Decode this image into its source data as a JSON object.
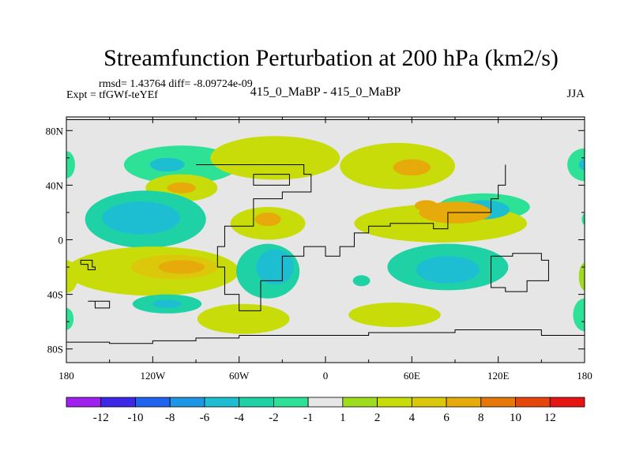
{
  "chart_data": {
    "type": "heatmap",
    "title": "Streamfunction Perturbation at 200 hPa (km2/s)",
    "stats_line": "rmsd= 1.43764  diff= -8.09724e-09",
    "experiment_label": "Expt = tfGWf-teYEf",
    "center_label": "415_0_MaBP - 415_0_MaBP",
    "season_label": "JJA",
    "x_axis": {
      "range": [
        -180,
        180
      ],
      "ticks": [
        {
          "value": -180,
          "label": "180"
        },
        {
          "value": -120,
          "label": "120W"
        },
        {
          "value": -60,
          "label": "60W"
        },
        {
          "value": 0,
          "label": "0"
        },
        {
          "value": 60,
          "label": "60E"
        },
        {
          "value": 120,
          "label": "120E"
        },
        {
          "value": 180,
          "label": "180"
        }
      ]
    },
    "y_axis": {
      "range": [
        -90,
        90
      ],
      "ticks": [
        {
          "value": 80,
          "label": "80N"
        },
        {
          "value": 40,
          "label": "40N"
        },
        {
          "value": 0,
          "label": "0"
        },
        {
          "value": -40,
          "label": "40S"
        },
        {
          "value": -80,
          "label": "80S"
        }
      ]
    },
    "colorbar": {
      "colors": [
        "#a020f0",
        "#3c28e6",
        "#1e64f0",
        "#1e96e6",
        "#1ebed2",
        "#1ed2a5",
        "#2de196",
        "#e6e6e6",
        "#a0dc1e",
        "#c8dc0a",
        "#dcc80a",
        "#e6aa0a",
        "#e6780a",
        "#e6460a",
        "#e61414"
      ],
      "labels": [
        "-12",
        "-10",
        "-8",
        "-6",
        "-4",
        "-2",
        "-1",
        "1",
        "2",
        "4",
        "6",
        "8",
        "10",
        "12"
      ]
    },
    "features": [
      {
        "lon": -100,
        "lat": 55,
        "rx": 40,
        "ry": 14,
        "level": 1,
        "sign": -1
      },
      {
        "lon": -110,
        "lat": 55,
        "rx": 12,
        "ry": 5,
        "level": 3,
        "sign": -1
      },
      {
        "lon": -180,
        "lat": 55,
        "rx": 6,
        "ry": 10,
        "level": 1,
        "sign": -1
      },
      {
        "lon": 180,
        "lat": 55,
        "rx": 12,
        "ry": 12,
        "level": 1,
        "sign": -1
      },
      {
        "lon": 180,
        "lat": 55,
        "rx": 4,
        "ry": 4,
        "level": 3,
        "sign": -1
      },
      {
        "lon": -35,
        "lat": 60,
        "rx": 45,
        "ry": 16,
        "level": 2,
        "sign": 1
      },
      {
        "lon": 50,
        "lat": 54,
        "rx": 40,
        "ry": 17,
        "level": 2,
        "sign": 1
      },
      {
        "lon": 60,
        "lat": 53,
        "rx": 13,
        "ry": 6,
        "level": 4,
        "sign": 1
      },
      {
        "lon": -100,
        "lat": 38,
        "rx": 25,
        "ry": 10,
        "level": 2,
        "sign": 1
      },
      {
        "lon": -100,
        "lat": 38,
        "rx": 10,
        "ry": 4,
        "level": 4,
        "sign": 1
      },
      {
        "lon": 110,
        "lat": 24,
        "rx": 32,
        "ry": 10,
        "level": 1,
        "sign": -1
      },
      {
        "lon": 110,
        "lat": 22,
        "rx": 18,
        "ry": 7,
        "level": 3,
        "sign": -1
      },
      {
        "lon": -125,
        "lat": 15,
        "rx": 42,
        "ry": 21,
        "level": 2,
        "sign": -1
      },
      {
        "lon": -128,
        "lat": 16,
        "rx": 27,
        "ry": 12,
        "level": 3,
        "sign": -1
      },
      {
        "lon": -40,
        "lat": 12,
        "rx": 26,
        "ry": 12,
        "level": 2,
        "sign": 1
      },
      {
        "lon": -40,
        "lat": 15,
        "rx": 9,
        "ry": 5,
        "level": 4,
        "sign": 1
      },
      {
        "lon": 80,
        "lat": 12,
        "rx": 60,
        "ry": 14,
        "level": 2,
        "sign": 1
      },
      {
        "lon": 90,
        "lat": 20,
        "rx": 25,
        "ry": 8,
        "level": 4,
        "sign": 1
      },
      {
        "lon": 70,
        "lat": 25,
        "rx": 8,
        "ry": 4,
        "level": 4,
        "sign": 1
      },
      {
        "lon": 180,
        "lat": 15,
        "rx": 2,
        "ry": 4,
        "level": 1,
        "sign": -1
      },
      {
        "lon": -120,
        "lat": -23,
        "rx": 60,
        "ry": 18,
        "level": 2,
        "sign": 1
      },
      {
        "lon": -105,
        "lat": -20,
        "rx": 30,
        "ry": 9,
        "level": 3,
        "sign": 1
      },
      {
        "lon": -100,
        "lat": -20,
        "rx": 16,
        "ry": 5,
        "level": 4,
        "sign": 1
      },
      {
        "lon": -180,
        "lat": -27,
        "rx": 8,
        "ry": 12,
        "level": 2,
        "sign": 1
      },
      {
        "lon": 180,
        "lat": -27,
        "rx": 4,
        "ry": 10,
        "level": 1,
        "sign": 1
      },
      {
        "lon": -40,
        "lat": -23,
        "rx": 22,
        "ry": 20,
        "level": 2,
        "sign": -1
      },
      {
        "lon": -35,
        "lat": -20,
        "rx": 13,
        "ry": 13,
        "level": 3,
        "sign": -1
      },
      {
        "lon": 85,
        "lat": -20,
        "rx": 42,
        "ry": 17,
        "level": 2,
        "sign": -1
      },
      {
        "lon": 85,
        "lat": -22,
        "rx": 22,
        "ry": 10,
        "level": 3,
        "sign": -1
      },
      {
        "lon": 25,
        "lat": -30,
        "rx": 6,
        "ry": 4,
        "level": 2,
        "sign": -1
      },
      {
        "lon": -110,
        "lat": -47,
        "rx": 24,
        "ry": 7,
        "level": 2,
        "sign": -1
      },
      {
        "lon": -110,
        "lat": -47,
        "rx": 10,
        "ry": 3,
        "level": 3,
        "sign": -1
      },
      {
        "lon": -180,
        "lat": -58,
        "rx": 5,
        "ry": 8,
        "level": 1,
        "sign": -1
      },
      {
        "lon": -57,
        "lat": -58,
        "rx": 32,
        "ry": 11,
        "level": 2,
        "sign": 1
      },
      {
        "lon": 48,
        "lat": -55,
        "rx": 32,
        "ry": 9,
        "level": 2,
        "sign": 1
      },
      {
        "lon": 180,
        "lat": -55,
        "rx": 8,
        "ry": 12,
        "level": 1,
        "sign": -1
      }
    ],
    "coastlines": [
      [
        [
          -90,
          55
        ],
        [
          -35,
          55
        ],
        [
          -15,
          48
        ],
        [
          -10,
          35
        ],
        [
          -30,
          30
        ],
        [
          -50,
          10
        ],
        [
          -70,
          -5
        ],
        [
          -75,
          -20
        ],
        [
          -70,
          -40
        ],
        [
          -60,
          -52
        ],
        [
          -45,
          -30
        ],
        [
          -30,
          -12
        ],
        [
          -15,
          -5
        ],
        [
          0,
          -12
        ],
        [
          10,
          -5
        ],
        [
          20,
          5
        ],
        [
          30,
          10
        ],
        [
          45,
          12
        ],
        [
          60,
          12
        ],
        [
          75,
          8
        ],
        [
          85,
          20
        ],
        [
          100,
          20
        ],
        [
          115,
          30
        ],
        [
          120,
          40
        ],
        [
          125,
          55
        ]
      ],
      [
        [
          -50,
          48
        ],
        [
          -30,
          48
        ],
        [
          -25,
          40
        ],
        [
          -40,
          40
        ],
        [
          -50,
          48
        ]
      ],
      [
        [
          115,
          -12
        ],
        [
          130,
          -10
        ],
        [
          150,
          -15
        ],
        [
          155,
          -30
        ],
        [
          140,
          -38
        ],
        [
          125,
          -35
        ],
        [
          115,
          -25
        ],
        [
          115,
          -12
        ]
      ],
      [
        [
          -60,
          -70
        ],
        [
          -30,
          -70
        ],
        [
          0,
          -70
        ],
        [
          30,
          -68
        ],
        [
          60,
          -68
        ],
        [
          90,
          -66
        ],
        [
          120,
          -66
        ],
        [
          150,
          -70
        ],
        [
          180,
          -75
        ]
      ],
      [
        [
          -180,
          -75
        ],
        [
          -150,
          -76
        ],
        [
          -120,
          -74
        ],
        [
          -90,
          -72
        ],
        [
          -60,
          -70
        ]
      ],
      [
        [
          -170,
          -18
        ],
        [
          -165,
          -22
        ],
        [
          -160,
          -20
        ],
        [
          -162,
          -15
        ],
        [
          -170,
          -18
        ]
      ],
      [
        [
          -165,
          -45
        ],
        [
          -160,
          -50
        ],
        [
          -150,
          -50
        ],
        [
          -150,
          -45
        ],
        [
          -165,
          -45
        ]
      ],
      [
        [
          -180,
          88
        ],
        [
          180,
          88
        ]
      ]
    ]
  }
}
